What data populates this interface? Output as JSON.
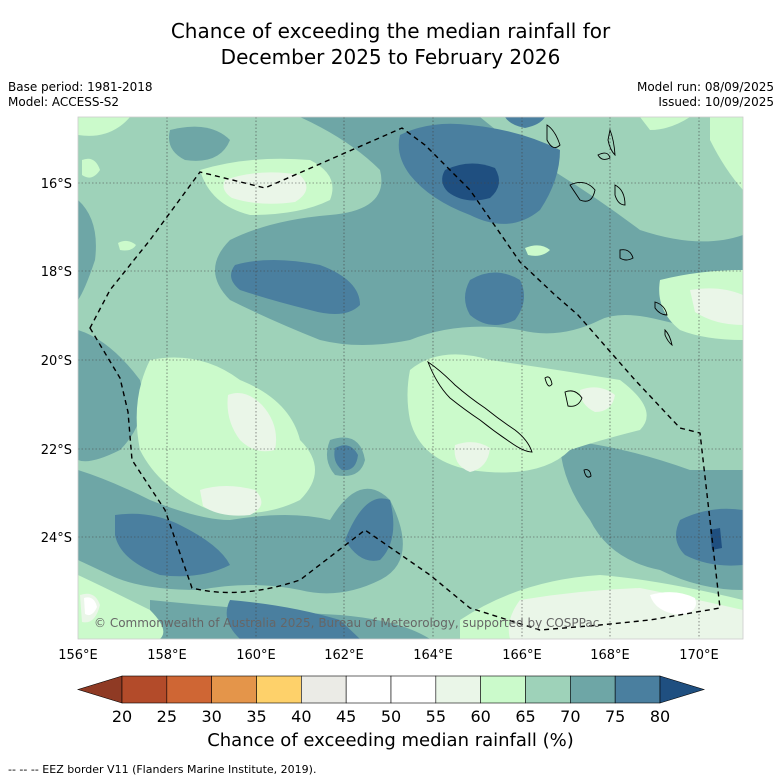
{
  "title": {
    "line1": "Chance of exceeding the median rainfall for",
    "line2": "December 2025 to February 2026"
  },
  "info_left": {
    "base_period": "Base period: 1981-2018",
    "model": "Model: ACCESS-S2"
  },
  "info_right": {
    "model_run": "Model run: 08/09/2025",
    "issued": "Issued: 10/09/2025"
  },
  "map": {
    "lon_range": [
      156,
      171
    ],
    "lat_range": [
      -26.3,
      -14.5
    ],
    "lon_ticks": [
      "156°E",
      "158°E",
      "160°E",
      "162°E",
      "164°E",
      "166°E",
      "168°E",
      "170°E"
    ],
    "lat_ticks": [
      "16°S",
      "18°S",
      "20°S",
      "22°S",
      "24°S"
    ],
    "grid": true,
    "copyright": "© Commonwealth of Australia 2025, Bureau of Meteorology, supported by COSPPac"
  },
  "colorbar": {
    "ticks": [
      "20",
      "25",
      "30",
      "35",
      "40",
      "45",
      "50",
      "55",
      "60",
      "65",
      "70",
      "75",
      "80"
    ],
    "colors": [
      "#b34b2a",
      "#cf6634",
      "#e4954a",
      "#fed16a",
      "#ebebe6",
      "#ffffff",
      "#ffffff",
      "#eaf6e8",
      "#cbfacb",
      "#9ed2b9",
      "#6ea6a6",
      "#4a7f9f"
    ],
    "under_color": "#8f3a24",
    "over_color": "#1f4f80",
    "label": "Chance of exceeding median rainfall (%)"
  },
  "footnote": "--  --  -- EEZ border V11 (Flanders Marine Institute, 2019)."
}
